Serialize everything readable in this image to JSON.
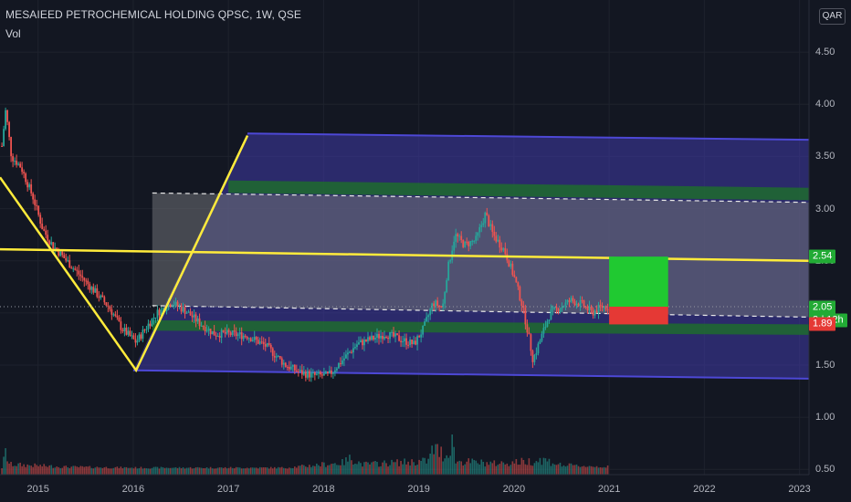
{
  "header": {
    "title": "MESAIEED PETROCHEMICAL HOLDING QPSC, 1W, QSE",
    "indicator": "Vol",
    "currency": "QAR"
  },
  "colors": {
    "background": "#131722",
    "up": "#26a69a",
    "down": "#ef5350",
    "channel_outer": "#3f3aa8",
    "channel_inner": "#1f6b2e",
    "channel_mid": "#6f7177",
    "trendline": "#ffeb3b",
    "target_box": "#20c931",
    "stop_box": "#e53935"
  },
  "chart_data": {
    "type": "candlestick",
    "title": "MESAIEED PETROCHEMICAL HOLDING QPSC, 1W, QSE",
    "y_axis": {
      "ticks": [
        "0.50",
        "1.00",
        "1.50",
        "2.00",
        "2.50",
        "3.00",
        "3.50",
        "4.00",
        "4.50"
      ],
      "range": [
        0.45,
        5.0
      ]
    },
    "x_axis": {
      "ticks": [
        "2015",
        "2016",
        "2017",
        "2018",
        "2019",
        "2020",
        "2021",
        "2022",
        "2023"
      ],
      "range": [
        2014.6,
        2023.1
      ]
    },
    "price_path": [
      [
        2014.62,
        3.6
      ],
      [
        2014.66,
        3.95
      ],
      [
        2014.72,
        3.5
      ],
      [
        2014.82,
        3.4
      ],
      [
        2014.95,
        3.1
      ],
      [
        2015.05,
        2.8
      ],
      [
        2015.15,
        2.65
      ],
      [
        2015.3,
        2.5
      ],
      [
        2015.45,
        2.35
      ],
      [
        2015.6,
        2.2
      ],
      [
        2015.75,
        2.05
      ],
      [
        2015.88,
        1.85
      ],
      [
        2016.03,
        1.72
      ],
      [
        2016.15,
        1.88
      ],
      [
        2016.25,
        2.0
      ],
      [
        2016.4,
        2.1
      ],
      [
        2016.55,
        2.02
      ],
      [
        2016.7,
        1.9
      ],
      [
        2016.85,
        1.8
      ],
      [
        2017.0,
        1.8
      ],
      [
        2017.2,
        1.78
      ],
      [
        2017.4,
        1.68
      ],
      [
        2017.6,
        1.5
      ],
      [
        2017.75,
        1.43
      ],
      [
        2017.9,
        1.4
      ],
      [
        2018.05,
        1.4
      ],
      [
        2018.2,
        1.55
      ],
      [
        2018.35,
        1.7
      ],
      [
        2018.5,
        1.75
      ],
      [
        2018.65,
        1.8
      ],
      [
        2018.8,
        1.75
      ],
      [
        2018.95,
        1.7
      ],
      [
        2019.05,
        1.85
      ],
      [
        2019.15,
        2.1
      ],
      [
        2019.25,
        2.05
      ],
      [
        2019.3,
        2.4
      ],
      [
        2019.38,
        2.75
      ],
      [
        2019.48,
        2.65
      ],
      [
        2019.6,
        2.7
      ],
      [
        2019.7,
        2.95
      ],
      [
        2019.78,
        2.75
      ],
      [
        2019.9,
        2.6
      ],
      [
        2020.0,
        2.35
      ],
      [
        2020.08,
        2.1
      ],
      [
        2020.15,
        1.8
      ],
      [
        2020.2,
        1.55
      ],
      [
        2020.28,
        1.75
      ],
      [
        2020.38,
        2.0
      ],
      [
        2020.48,
        2.05
      ],
      [
        2020.6,
        2.12
      ],
      [
        2020.72,
        2.08
      ],
      [
        2020.82,
        2.0
      ],
      [
        2020.92,
        2.06
      ],
      [
        2021.0,
        2.06
      ]
    ],
    "volume_path": [
      [
        2014.62,
        0.52
      ],
      [
        2014.66,
        0.7
      ],
      [
        2014.7,
        0.56
      ],
      [
        2015.3,
        0.53
      ],
      [
        2016.0,
        0.52
      ],
      [
        2017.6,
        0.52
      ],
      [
        2018.2,
        0.58
      ],
      [
        2018.3,
        0.64
      ],
      [
        2018.4,
        0.56
      ],
      [
        2019.1,
        0.6
      ],
      [
        2019.15,
        0.75
      ],
      [
        2019.3,
        0.66
      ],
      [
        2019.35,
        0.92
      ],
      [
        2019.38,
        0.6
      ],
      [
        2019.8,
        0.57
      ],
      [
        2020.2,
        0.6
      ],
      [
        2020.3,
        0.62
      ],
      [
        2020.5,
        0.55
      ],
      [
        2021.0,
        0.53
      ]
    ],
    "drawings": {
      "channel_outer": {
        "top": [
          [
            2017.2,
            3.72
          ],
          [
            2023.1,
            3.66
          ]
        ],
        "bottom": [
          [
            2016.0,
            1.45
          ],
          [
            2023.1,
            1.37
          ]
        ]
      },
      "channel_inner_green_top": {
        "top": [
          [
            2017.0,
            3.27
          ],
          [
            2023.1,
            3.2
          ]
        ],
        "bottom": [
          [
            2017.0,
            3.15
          ],
          [
            2023.1,
            3.08
          ]
        ]
      },
      "channel_inner_green_bottom": {
        "top": [
          [
            2016.2,
            1.93
          ],
          [
            2023.1,
            1.89
          ]
        ],
        "bottom": [
          [
            2016.2,
            1.83
          ],
          [
            2023.1,
            1.79
          ]
        ]
      },
      "dashed_upper": [
        [
          2016.2,
          3.15
        ],
        [
          2023.1,
          3.06
        ]
      ],
      "dashed_lower": [
        [
          2016.2,
          2.07
        ],
        [
          2023.1,
          1.96
        ]
      ],
      "trend_horizontal": [
        [
          2014.6,
          2.61
        ],
        [
          2023.1,
          2.5
        ]
      ],
      "v_pattern": [
        [
          2014.6,
          3.3
        ],
        [
          2016.03,
          1.45
        ],
        [
          2017.2,
          3.7
        ]
      ],
      "target_box": {
        "x": [
          2021.0,
          2021.62
        ],
        "y": [
          2.06,
          2.54
        ]
      },
      "stop_box": {
        "x": [
          2021.0,
          2021.62
        ],
        "y": [
          1.89,
          2.06
        ]
      },
      "price_line": 2.06
    },
    "price_labels": [
      {
        "value": 2.54,
        "text": "2.54",
        "color": "#22ab35"
      },
      {
        "value": 2.06,
        "text": "2.06",
        "color": "#2a2e39"
      },
      {
        "value": 2.05,
        "text": "2.05",
        "color": "#22ab35"
      },
      {
        "value": 1.93,
        "text": "3d 12h",
        "color": "#22ab35"
      },
      {
        "value": 1.89,
        "text": "1.89",
        "color": "#e53935"
      }
    ]
  }
}
